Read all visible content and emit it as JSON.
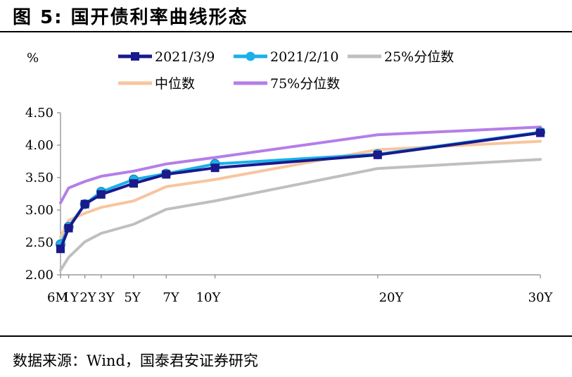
{
  "figure": {
    "title": "图 5:  国开债利率曲线形态",
    "source": "数据来源：Wind，国泰君安证券研究"
  },
  "chart_data": {
    "type": "line",
    "ylabel": "%",
    "ylim": [
      2.0,
      4.5
    ],
    "yticks": [
      "2.00",
      "2.50",
      "3.00",
      "3.50",
      "4.00",
      "4.50"
    ],
    "x": [
      0.5,
      1,
      2,
      3,
      5,
      7,
      10,
      20,
      30
    ],
    "xticks": [
      {
        "label": "6M",
        "value": 0.5
      },
      {
        "label": "1Y",
        "value": 1
      },
      {
        "label": "2Y",
        "value": 2
      },
      {
        "label": "3Y",
        "value": 3
      },
      {
        "label": "5Y",
        "value": 5
      },
      {
        "label": "7Y",
        "value": 7
      },
      {
        "label": "10Y",
        "value": 10
      },
      {
        "label": "20Y",
        "value": 20
      },
      {
        "label": "30Y",
        "value": 30
      }
    ],
    "grid": false,
    "legend_position": "top",
    "series": [
      {
        "name": "2021/3/9",
        "color": "#1a1a8c",
        "marker": "square",
        "width": 4,
        "values": [
          2.4,
          2.72,
          3.09,
          3.24,
          3.41,
          3.55,
          3.65,
          3.85,
          4.19
        ]
      },
      {
        "name": "2021/2/10",
        "color": "#1ab0e8",
        "marker": "circle",
        "width": 4,
        "values": [
          2.47,
          2.74,
          3.09,
          3.28,
          3.47,
          3.56,
          3.71,
          3.86,
          4.2
        ]
      },
      {
        "name": "25%分位数",
        "color": "#bfbfbf",
        "marker": "none",
        "width": 4,
        "values": [
          2.07,
          2.27,
          2.51,
          2.64,
          2.78,
          3.01,
          3.14,
          3.64,
          3.78
        ]
      },
      {
        "name": "中位数",
        "color": "#f8c59e",
        "marker": "none",
        "width": 4,
        "values": [
          2.58,
          2.84,
          2.95,
          3.04,
          3.14,
          3.36,
          3.47,
          3.93,
          4.06
        ]
      },
      {
        "name": "75%分位数",
        "color": "#b57ee8",
        "marker": "none",
        "width": 4,
        "values": [
          3.11,
          3.34,
          3.44,
          3.52,
          3.6,
          3.71,
          3.81,
          4.16,
          4.28
        ]
      }
    ]
  }
}
